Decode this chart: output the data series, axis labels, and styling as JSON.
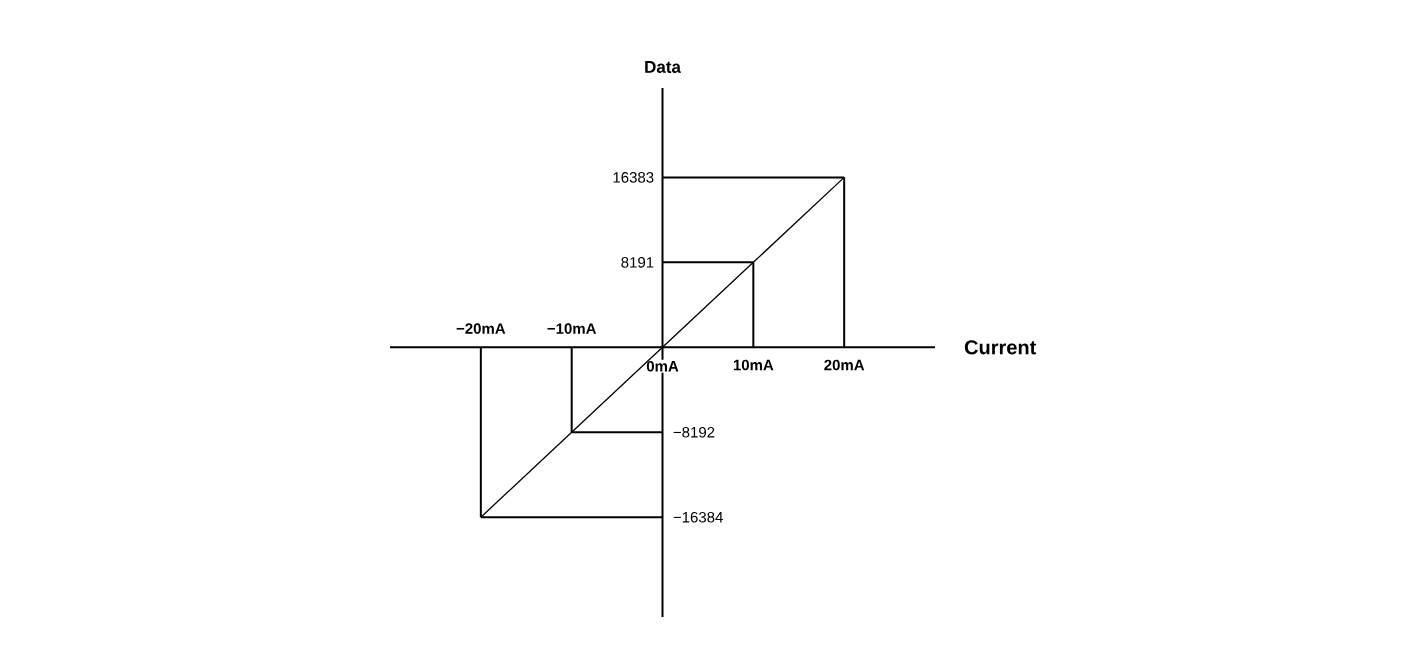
{
  "chart_data": {
    "type": "line",
    "xlabel": "Current",
    "ylabel": "Data",
    "x": [
      -20,
      -10,
      0,
      10,
      20
    ],
    "values": [
      -16384,
      -8192,
      0,
      8191,
      16383
    ],
    "color": "#000000",
    "marker": "none",
    "xlim": [
      -30,
      30
    ],
    "ylim": [
      -26000,
      25000
    ],
    "xticks": [
      {
        "value": 0,
        "label": "0mA"
      },
      {
        "value": 10,
        "label": "10mA"
      },
      {
        "value": 20,
        "label": "20mA"
      }
    ],
    "x2lim": [
      -30,
      30
    ],
    "x2ticks": [
      {
        "value": -20,
        "label": "−20mA"
      },
      {
        "value": -10,
        "label": "−10mA"
      }
    ],
    "yticks": [
      8191,
      16383
    ],
    "y2lim": [
      -26000,
      25000
    ],
    "y2ticks": [
      {
        "value": -16384,
        "label": "−16384"
      },
      {
        "value": -8192,
        "label": "−8192"
      }
    ],
    "ref_lines": [
      {
        "axis": "x",
        "value": -20,
        "color": "#000000"
      },
      {
        "axis": "x",
        "value": -10,
        "color": "#000000"
      },
      {
        "axis": "x",
        "value": 10,
        "color": "#000000"
      },
      {
        "axis": "x",
        "value": 20,
        "color": "#000000"
      },
      {
        "axis": "y",
        "value": -16384,
        "color": "#000000"
      },
      {
        "axis": "y",
        "value": -8192,
        "color": "#000000"
      },
      {
        "axis": "y",
        "value": 8191,
        "color": "#000000"
      },
      {
        "axis": "y",
        "value": 16383,
        "color": "#000000"
      }
    ]
  }
}
